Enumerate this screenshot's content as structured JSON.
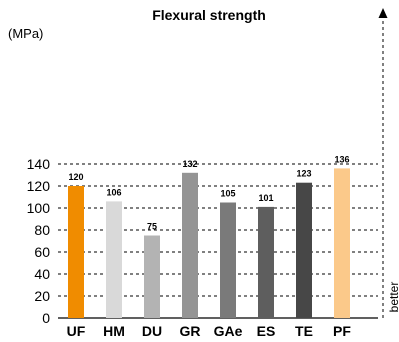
{
  "chart_data": {
    "type": "bar",
    "title": "Flexural strength",
    "ylabel": "(MPa)",
    "xlabel": "",
    "categories": [
      "UF",
      "HM",
      "DU",
      "GR",
      "GAe",
      "ES",
      "TE",
      "PF"
    ],
    "values": [
      120,
      106,
      75,
      132,
      105,
      101,
      123,
      136
    ],
    "bar_colors": [
      "#f08c00",
      "#d9d9d9",
      "#b3b3b3",
      "#949494",
      "#7a7a7a",
      "#5e5e5e",
      "#474747",
      "#fbc98a"
    ],
    "ylim": [
      0,
      145
    ],
    "yticks": [
      0,
      20,
      40,
      60,
      80,
      100,
      120,
      140
    ],
    "grid": true,
    "annotation": "better"
  }
}
